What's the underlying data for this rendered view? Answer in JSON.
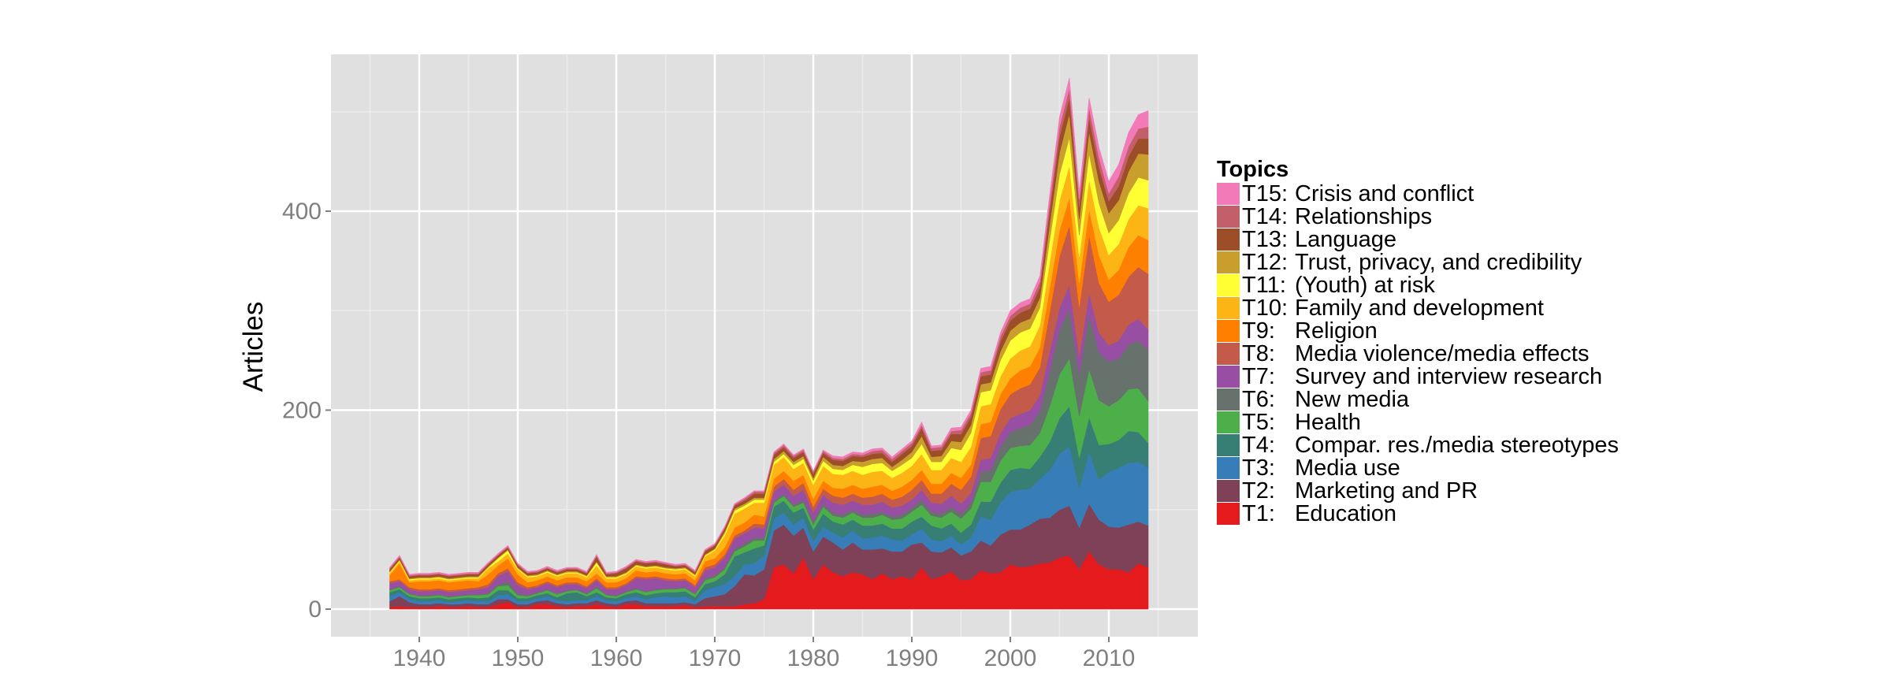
{
  "chart_data": {
    "type": "area",
    "stacked": true,
    "title": "",
    "xlabel": "",
    "ylabel": "Articles",
    "xlim": [
      1931,
      2019
    ],
    "ylim": [
      -26,
      550
    ],
    "x_ticks": [
      1940,
      1950,
      1960,
      1970,
      1980,
      1990,
      2000,
      2010
    ],
    "y_ticks": [
      0,
      200,
      400
    ],
    "grid": true,
    "legend_title": "Topics",
    "legend_position": "right",
    "x_start": 1937,
    "x_end": 2014,
    "series": [
      {
        "code": "T1:",
        "name": "Education",
        "color": "#E41A1C",
        "values": [
          2,
          3,
          2,
          2,
          2,
          3,
          2,
          2,
          3,
          2,
          2,
          5,
          7,
          2,
          2,
          5,
          5,
          3,
          2,
          3,
          3,
          5,
          3,
          2,
          5,
          5,
          3,
          3,
          3,
          3,
          4,
          2,
          3,
          3,
          3,
          3,
          5,
          6,
          10,
          42,
          45,
          36,
          52,
          30,
          45,
          37,
          33,
          37,
          35,
          30,
          36,
          30,
          33,
          30,
          42,
          30,
          33,
          38,
          29,
          30,
          39,
          36,
          37,
          45,
          42,
          43,
          46,
          47,
          52,
          54,
          40,
          58,
          45,
          40,
          40,
          37,
          46,
          42
        ]
      },
      {
        "code": "T2:",
        "name": "Marketing and PR",
        "color": "#7F4158",
        "values": [
          6,
          10,
          5,
          3,
          3,
          3,
          3,
          3,
          3,
          3,
          3,
          5,
          3,
          3,
          3,
          3,
          4,
          3,
          3,
          3,
          3,
          4,
          3,
          3,
          3,
          4,
          3,
          3,
          3,
          3,
          3,
          3,
          8,
          10,
          12,
          20,
          30,
          28,
          30,
          37,
          40,
          38,
          30,
          28,
          28,
          30,
          27,
          30,
          25,
          30,
          25,
          28,
          25,
          35,
          25,
          28,
          24,
          24,
          25,
          28,
          30,
          28,
          38,
          35,
          38,
          42,
          45,
          45,
          48,
          50,
          42,
          48,
          45,
          43,
          42,
          48,
          42,
          42
        ]
      },
      {
        "code": "T3:",
        "name": "Media use",
        "color": "#377EB8",
        "values": [
          5,
          4,
          3,
          3,
          3,
          3,
          2,
          3,
          3,
          3,
          3,
          4,
          5,
          3,
          3,
          3,
          4,
          3,
          3,
          3,
          3,
          4,
          3,
          3,
          3,
          4,
          4,
          6,
          7,
          6,
          6,
          3,
          8,
          9,
          10,
          10,
          10,
          12,
          14,
          12,
          12,
          11,
          10,
          10,
          10,
          10,
          12,
          12,
          11,
          12,
          13,
          12,
          11,
          10,
          14,
          12,
          11,
          12,
          11,
          14,
          24,
          26,
          32,
          38,
          40,
          36,
          40,
          48,
          56,
          60,
          40,
          52,
          40,
          55,
          60,
          62,
          60,
          58
        ]
      },
      {
        "code": "T4:",
        "name": "Compar. res./media stereotypes",
        "color": "#377F75",
        "values": [
          4,
          3,
          3,
          3,
          3,
          3,
          3,
          3,
          3,
          3,
          4,
          5,
          4,
          3,
          3,
          3,
          3,
          3,
          8,
          8,
          4,
          4,
          3,
          3,
          4,
          4,
          4,
          4,
          4,
          5,
          5,
          4,
          6,
          6,
          10,
          20,
          12,
          15,
          10,
          12,
          12,
          12,
          10,
          12,
          13,
          11,
          13,
          11,
          13,
          12,
          12,
          11,
          12,
          13,
          12,
          14,
          13,
          12,
          12,
          13,
          15,
          18,
          20,
          22,
          22,
          20,
          22,
          28,
          36,
          40,
          30,
          35,
          35,
          28,
          28,
          32,
          30,
          25
        ]
      },
      {
        "code": "T5:",
        "name": "Health",
        "color": "#4DAF4A",
        "values": [
          2,
          2,
          2,
          2,
          2,
          2,
          2,
          2,
          2,
          3,
          3,
          4,
          5,
          3,
          2,
          2,
          3,
          3,
          2,
          2,
          2,
          4,
          2,
          2,
          2,
          3,
          3,
          3,
          3,
          3,
          3,
          3,
          4,
          4,
          5,
          5,
          6,
          8,
          5,
          4,
          5,
          6,
          5,
          5,
          7,
          6,
          7,
          7,
          8,
          8,
          9,
          9,
          10,
          10,
          12,
          10,
          11,
          12,
          14,
          16,
          20,
          20,
          22,
          22,
          22,
          24,
          24,
          36,
          44,
          48,
          42,
          48,
          45,
          38,
          40,
          42,
          44,
          42
        ]
      },
      {
        "code": "T6:",
        "name": "New media",
        "color": "#68726D",
        "values": [
          1,
          1,
          1,
          1,
          1,
          1,
          1,
          1,
          1,
          1,
          1,
          2,
          4,
          2,
          1,
          1,
          1,
          1,
          1,
          1,
          1,
          2,
          1,
          1,
          1,
          1,
          1,
          1,
          1,
          1,
          1,
          1,
          2,
          2,
          2,
          3,
          3,
          3,
          3,
          2,
          2,
          2,
          3,
          3,
          3,
          3,
          3,
          3,
          3,
          4,
          3,
          3,
          4,
          4,
          5,
          4,
          4,
          5,
          5,
          6,
          10,
          12,
          14,
          16,
          18,
          20,
          22,
          35,
          45,
          50,
          42,
          55,
          48,
          45,
          42,
          45,
          48,
          52
        ]
      },
      {
        "code": "T7:",
        "name": "Survey and interview research",
        "color": "#984EA3",
        "values": [
          6,
          5,
          4,
          4,
          4,
          4,
          4,
          4,
          4,
          5,
          6,
          8,
          10,
          8,
          6,
          5,
          6,
          6,
          6,
          5,
          5,
          6,
          5,
          6,
          6,
          10,
          12,
          11,
          8,
          7,
          7,
          6,
          8,
          8,
          10,
          10,
          10,
          10,
          9,
          9,
          9,
          9,
          10,
          9,
          9,
          10,
          10,
          9,
          10,
          9,
          10,
          9,
          9,
          8,
          10,
          9,
          10,
          11,
          10,
          10,
          12,
          12,
          14,
          14,
          14,
          15,
          16,
          20,
          22,
          24,
          18,
          22,
          20,
          16,
          18,
          20,
          22,
          20
        ]
      },
      {
        "code": "T8:",
        "name": "Media violence/media effects",
        "color": "#C45B4A",
        "values": [
          2,
          2,
          2,
          2,
          2,
          2,
          2,
          2,
          2,
          2,
          3,
          3,
          3,
          3,
          2,
          2,
          2,
          2,
          2,
          2,
          2,
          2,
          2,
          2,
          2,
          2,
          2,
          2,
          2,
          2,
          2,
          2,
          3,
          3,
          3,
          3,
          3,
          4,
          4,
          5,
          6,
          6,
          7,
          6,
          6,
          7,
          7,
          7,
          7,
          8,
          8,
          8,
          9,
          10,
          10,
          9,
          10,
          12,
          14,
          16,
          22,
          22,
          24,
          24,
          26,
          26,
          28,
          40,
          52,
          60,
          50,
          58,
          50,
          44,
          46,
          48,
          52,
          56
        ]
      },
      {
        "code": "T9:",
        "name": "Religion",
        "color": "#FF7F00",
        "values": [
          6,
          16,
          5,
          8,
          8,
          8,
          8,
          8,
          8,
          6,
          10,
          8,
          10,
          8,
          5,
          5,
          5,
          5,
          5,
          5,
          5,
          5,
          5,
          5,
          5,
          6,
          5,
          5,
          5,
          5,
          5,
          5,
          6,
          6,
          7,
          8,
          8,
          9,
          8,
          8,
          8,
          9,
          8,
          8,
          8,
          8,
          9,
          9,
          9,
          10,
          9,
          9,
          10,
          10,
          10,
          10,
          10,
          11,
          12,
          12,
          14,
          14,
          15,
          16,
          18,
          18,
          20,
          24,
          26,
          28,
          24,
          26,
          28,
          22,
          25,
          30,
          32,
          34
        ]
      },
      {
        "code": "T10:",
        "name": "Family and development",
        "color": "#FDB415",
        "values": [
          2,
          2,
          2,
          2,
          2,
          2,
          2,
          2,
          2,
          3,
          6,
          4,
          5,
          5,
          5,
          4,
          4,
          4,
          4,
          4,
          4,
          8,
          4,
          4,
          4,
          4,
          4,
          4,
          4,
          4,
          4,
          4,
          5,
          8,
          12,
          14,
          14,
          12,
          14,
          14,
          14,
          12,
          12,
          14,
          15,
          14,
          14,
          14,
          14,
          15,
          14,
          13,
          14,
          14,
          16,
          14,
          14,
          15,
          16,
          18,
          18,
          18,
          18,
          20,
          20,
          20,
          22,
          26,
          30,
          32,
          26,
          30,
          28,
          25,
          26,
          28,
          30,
          32
        ]
      },
      {
        "code": "T11:",
        "name": "(Youth) at risk",
        "color": "#FFFF33",
        "values": [
          1,
          1,
          1,
          1,
          1,
          1,
          1,
          1,
          1,
          1,
          1,
          3,
          3,
          1,
          1,
          1,
          1,
          1,
          1,
          1,
          1,
          3,
          1,
          1,
          1,
          1,
          1,
          1,
          1,
          1,
          1,
          1,
          1,
          1,
          2,
          3,
          3,
          3,
          3,
          3,
          3,
          4,
          4,
          4,
          5,
          5,
          5,
          6,
          8,
          8,
          8,
          7,
          8,
          8,
          10,
          8,
          8,
          10,
          12,
          14,
          14,
          14,
          16,
          18,
          18,
          18,
          18,
          22,
          26,
          28,
          22,
          26,
          24,
          22,
          24,
          26,
          28,
          28
        ]
      },
      {
        "code": "T12:",
        "name": "Trust, privacy, and credibility",
        "color": "#CA9E2C",
        "values": [
          1,
          1,
          1,
          1,
          1,
          1,
          1,
          1,
          1,
          1,
          1,
          1,
          1,
          1,
          1,
          1,
          1,
          1,
          1,
          1,
          1,
          1,
          1,
          1,
          1,
          1,
          1,
          1,
          1,
          1,
          1,
          1,
          1,
          1,
          2,
          2,
          2,
          2,
          2,
          3,
          3,
          3,
          3,
          3,
          4,
          4,
          4,
          4,
          5,
          5,
          5,
          4,
          5,
          6,
          8,
          5,
          6,
          7,
          8,
          8,
          8,
          8,
          9,
          10,
          10,
          10,
          10,
          16,
          22,
          24,
          16,
          22,
          22,
          20,
          20,
          22,
          24,
          26
        ]
      },
      {
        "code": "T13:",
        "name": "Language",
        "color": "#9B4E27",
        "values": [
          2,
          2,
          2,
          2,
          2,
          2,
          2,
          2,
          2,
          2,
          2,
          2,
          2,
          2,
          2,
          2,
          2,
          2,
          2,
          2,
          2,
          5,
          2,
          3,
          4,
          3,
          3,
          3,
          3,
          2,
          2,
          2,
          3,
          3,
          3,
          3,
          3,
          4,
          4,
          4,
          4,
          4,
          4,
          4,
          4,
          5,
          5,
          5,
          5,
          5,
          5,
          5,
          6,
          6,
          8,
          6,
          6,
          7,
          8,
          8,
          8,
          8,
          10,
          10,
          10,
          10,
          10,
          14,
          16,
          16,
          12,
          14,
          14,
          12,
          14,
          15,
          15,
          16
        ]
      },
      {
        "code": "T14:",
        "name": "Relationships",
        "color": "#C35F69",
        "values": [
          1,
          1,
          1,
          1,
          1,
          1,
          1,
          1,
          1,
          1,
          1,
          1,
          1,
          1,
          1,
          1,
          1,
          1,
          1,
          1,
          1,
          1,
          1,
          1,
          1,
          1,
          1,
          1,
          1,
          1,
          1,
          1,
          1,
          1,
          1,
          1,
          2,
          2,
          2,
          2,
          2,
          2,
          2,
          2,
          2,
          2,
          2,
          2,
          2,
          3,
          3,
          3,
          3,
          3,
          3,
          3,
          3,
          3,
          4,
          4,
          4,
          4,
          5,
          5,
          5,
          5,
          6,
          8,
          10,
          10,
          8,
          10,
          10,
          8,
          10,
          10,
          10,
          12
        ]
      },
      {
        "code": "T15:",
        "name": "Crisis and conflict",
        "color": "#F37AB8",
        "values": [
          1,
          1,
          1,
          1,
          1,
          1,
          1,
          1,
          1,
          1,
          1,
          1,
          1,
          1,
          1,
          1,
          1,
          1,
          1,
          1,
          1,
          1,
          1,
          1,
          1,
          1,
          1,
          1,
          1,
          1,
          1,
          1,
          1,
          1,
          1,
          1,
          1,
          1,
          1,
          1,
          1,
          1,
          1,
          1,
          1,
          2,
          2,
          2,
          2,
          2,
          2,
          2,
          2,
          2,
          3,
          2,
          2,
          3,
          3,
          3,
          4,
          4,
          4,
          5,
          5,
          5,
          6,
          8,
          10,
          10,
          8,
          10,
          10,
          12,
          12,
          14,
          14,
          16
        ]
      }
    ]
  },
  "legend": {
    "title": "Topics",
    "items": [
      {
        "code": "T15:",
        "label": "Crisis and conflict",
        "color": "#F37AB8"
      },
      {
        "code": "T14:",
        "label": "Relationships",
        "color": "#C35F69"
      },
      {
        "code": "T13:",
        "label": "Language",
        "color": "#9B4E27"
      },
      {
        "code": "T12:",
        "label": "Trust, privacy, and credibility",
        "color": "#CA9E2C"
      },
      {
        "code": "T11:",
        "label": "(Youth) at risk",
        "color": "#FFFF33"
      },
      {
        "code": "T10:",
        "label": "Family and development",
        "color": "#FDB415"
      },
      {
        "code": "T9:",
        "label": "Religion",
        "color": "#FF7F00"
      },
      {
        "code": "T8:",
        "label": "Media violence/media effects",
        "color": "#C45B4A"
      },
      {
        "code": "T7:",
        "label": "Survey and interview research",
        "color": "#984EA3"
      },
      {
        "code": "T6:",
        "label": "New media",
        "color": "#68726D"
      },
      {
        "code": "T5:",
        "label": "Health",
        "color": "#4DAF4A"
      },
      {
        "code": "T4:",
        "label": "Compar. res./media stereotypes",
        "color": "#377F75"
      },
      {
        "code": "T3:",
        "label": "Media use",
        "color": "#377EB8"
      },
      {
        "code": "T2:",
        "label": "Marketing and PR",
        "color": "#7F4158"
      },
      {
        "code": "T1:",
        "label": "Education",
        "color": "#E41A1C"
      }
    ]
  },
  "axis": {
    "ylabel": "Articles"
  }
}
